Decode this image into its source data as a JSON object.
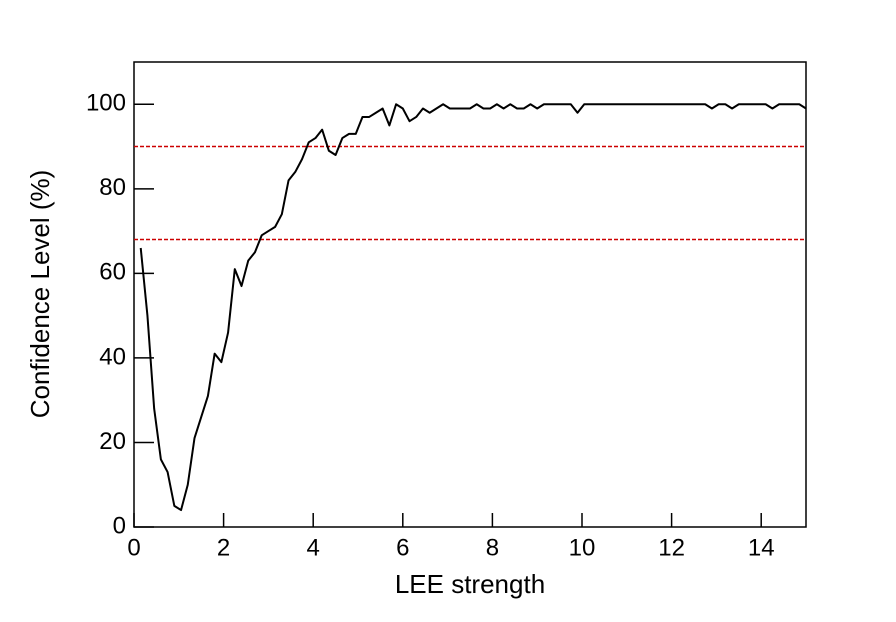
{
  "chart_data": {
    "type": "line",
    "x_label": "LEE strength",
    "y_label": "Confidence Level (%)",
    "xlim": [
      0,
      15
    ],
    "ylim": [
      0,
      110
    ],
    "xticks": [
      0,
      2,
      4,
      6,
      8,
      10,
      12,
      14
    ],
    "yticks": [
      0,
      20,
      40,
      60,
      80,
      100
    ],
    "x": [
      0.15,
      0.3,
      0.45,
      0.6,
      0.75,
      0.9,
      1.05,
      1.2,
      1.35,
      1.5,
      1.65,
      1.8,
      1.95,
      2.1,
      2.25,
      2.4,
      2.55,
      2.7,
      2.85,
      3,
      3.15,
      3.3,
      3.45,
      3.6,
      3.75,
      3.9,
      4.05,
      4.2,
      4.35,
      4.5,
      4.65,
      4.8,
      4.95,
      5.1,
      5.25,
      5.4,
      5.55,
      5.7,
      5.85,
      6,
      6.15,
      6.3,
      6.45,
      6.6,
      6.75,
      6.9,
      7.05,
      7.2,
      7.35,
      7.5,
      7.65,
      7.8,
      7.95,
      8.1,
      8.25,
      8.4,
      8.55,
      8.7,
      8.85,
      9,
      9.15,
      9.3,
      9.45,
      9.6,
      9.75,
      9.9,
      10.05,
      10.2,
      10.35,
      10.5,
      10.65,
      10.8,
      10.95,
      11.1,
      11.25,
      11.4,
      11.55,
      11.7,
      11.85,
      12,
      12.15,
      12.3,
      12.45,
      12.6,
      12.75,
      12.9,
      13.05,
      13.2,
      13.35,
      13.5,
      13.65,
      13.8,
      13.95,
      14.1,
      14.25,
      14.4,
      14.55,
      14.7,
      14.85,
      15
    ],
    "series": [
      {
        "color": "#000000",
        "values": [
          66,
          50,
          28,
          16,
          13,
          5,
          4,
          10,
          21,
          26,
          31,
          41,
          39,
          46,
          61,
          57,
          63,
          65,
          69,
          70,
          71,
          74,
          82,
          84,
          87,
          91,
          92,
          94,
          89,
          88,
          92,
          93,
          93,
          97,
          97,
          98,
          99,
          95,
          100,
          99,
          96,
          97,
          99,
          98,
          99,
          100,
          99,
          99,
          99,
          99,
          100,
          99,
          99,
          100,
          99,
          100,
          99,
          99,
          100,
          99,
          100,
          100,
          100,
          100,
          100,
          98,
          100,
          100,
          100,
          100,
          100,
          100,
          100,
          100,
          100,
          100,
          100,
          100,
          100,
          100,
          100,
          100,
          100,
          100,
          100,
          99,
          100,
          100,
          99,
          100,
          100,
          100,
          100,
          100,
          99,
          100,
          100,
          100,
          100,
          99
        ]
      }
    ],
    "hlines": [
      {
        "value": 90,
        "color": "#cc0000"
      },
      {
        "value": 68,
        "color": "#cc0000"
      }
    ]
  }
}
